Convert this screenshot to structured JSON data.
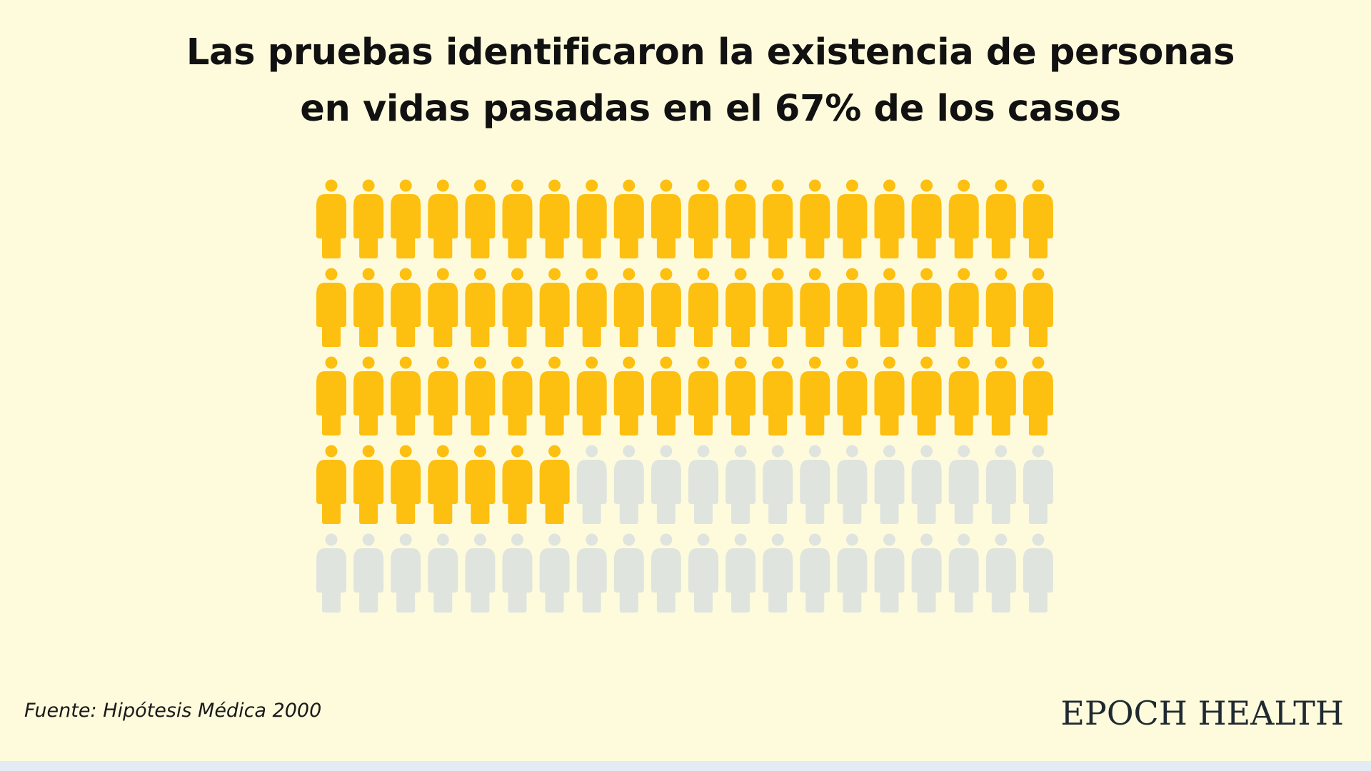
{
  "title": {
    "line1": "Las pruebas identificaron la existencia de personas",
    "line2": "en vidas pasadas en el 67% de los casos"
  },
  "source": "Fuente: Hipótesis Médica 2000",
  "brand": "EPOCH HEALTH",
  "chart_data": {
    "type": "pictogram",
    "total_icons": 100,
    "rows": 5,
    "columns": 20,
    "highlighted_count": 67,
    "percent": 67,
    "highlight_color": "#fdbf10",
    "base_color": "#e0e4df",
    "icon": "person-icon"
  }
}
